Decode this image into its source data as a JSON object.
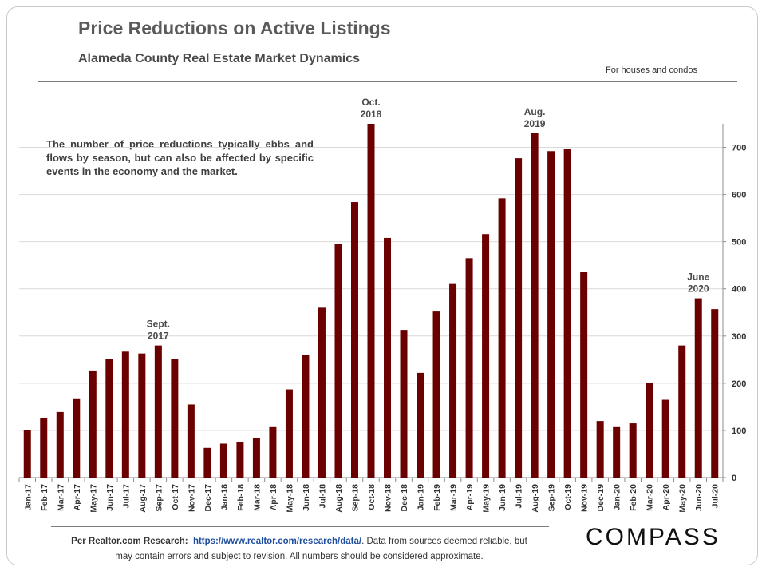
{
  "header": {
    "title": "Price Reductions on Active Listings",
    "subtitle": "Alameda County Real Estate Market Dynamics",
    "note": "For houses and condos"
  },
  "description": "The number of price reductions typically ebbs and flows by season, but can also be affected by specific events in the economy and the market.",
  "footer": {
    "prefix": "Per Realtor.com Research:",
    "link": "https://www.realtor.com/research/data/",
    "suffix": ". Data from sources deemed reliable, but may contain errors and subject to revision. All numbers should be considered approximate."
  },
  "logo": "COMPASS",
  "chart_data": {
    "type": "bar",
    "categories": [
      "Jan-17",
      "Feb-17",
      "Mar-17",
      "Apr-17",
      "May-17",
      "Jun-17",
      "Jul-17",
      "Aug-17",
      "Sep-17",
      "Oct-17",
      "Nov-17",
      "Dec-17",
      "Jan-18",
      "Feb-18",
      "Mar-18",
      "Apr-18",
      "May-18",
      "Jun-18",
      "Jul-18",
      "Aug-18",
      "Sep-18",
      "Oct-18",
      "Nov-18",
      "Dec-18",
      "Jan-19",
      "Feb-19",
      "Mar-19",
      "Apr-19",
      "May-19",
      "Jun-19",
      "Jul-19",
      "Aug-19",
      "Sep-19",
      "Oct-19",
      "Nov-19",
      "Dec-19",
      "Jan-20",
      "Feb-20",
      "Mar-20",
      "Apr-20",
      "May-20",
      "Jun-20",
      "Jul-20"
    ],
    "values": [
      100,
      127,
      139,
      168,
      227,
      251,
      267,
      263,
      280,
      251,
      155,
      63,
      72,
      75,
      84,
      107,
      187,
      260,
      360,
      496,
      584,
      750,
      508,
      313,
      222,
      352,
      412,
      465,
      516,
      592,
      677,
      730,
      692,
      697,
      436,
      120,
      107,
      115,
      200,
      165,
      280,
      380,
      357
    ],
    "ylim": [
      0,
      750
    ],
    "yticks": [
      0,
      100,
      200,
      300,
      400,
      500,
      600,
      700
    ],
    "y_axis_side": "right",
    "bar_color": "#6b0000",
    "annotations": [
      {
        "lines": [
          "Sept.",
          "2017"
        ],
        "category": "Sep-17"
      },
      {
        "lines": [
          "Oct.",
          "2018"
        ],
        "category": "Oct-18"
      },
      {
        "lines": [
          "Aug.",
          "2019"
        ],
        "category": "Aug-19"
      },
      {
        "lines": [
          "June",
          "2020"
        ],
        "category": "Jun-20"
      }
    ]
  }
}
